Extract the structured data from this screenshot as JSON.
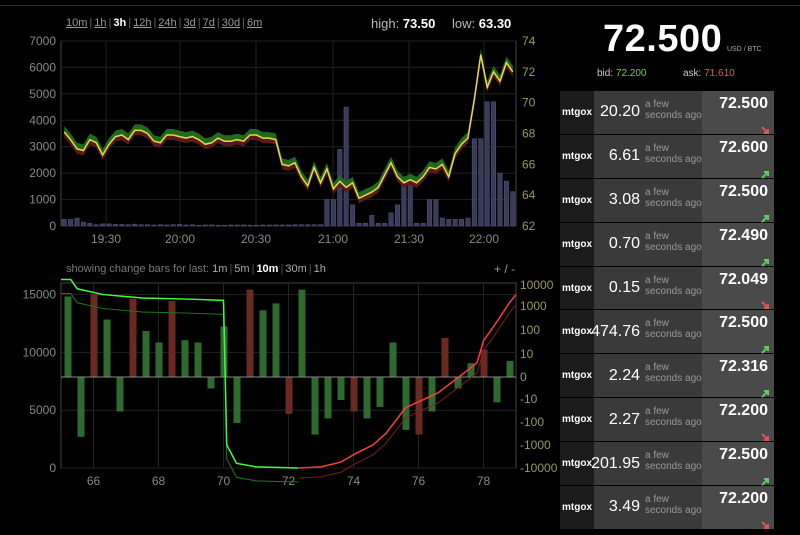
{
  "timeframes": {
    "options": [
      "10m",
      "1h",
      "3h",
      "12h",
      "24h",
      "3d",
      "7d",
      "30d",
      "6m"
    ],
    "active": "3h"
  },
  "stats": {
    "high_label": "high:",
    "high_value": "73.50",
    "low_label": "low:",
    "low_value": "63.30"
  },
  "ticker": {
    "price": "72.500",
    "unit": "USD / BTC",
    "bid_label": "bid:",
    "bid_value": "72.200",
    "ask_label": "ask:",
    "ask_value": "71.610"
  },
  "change_bars": {
    "label": "showing change bars for last:",
    "options": [
      "1m",
      "5m",
      "10m",
      "30m",
      "1h"
    ],
    "active": "10m",
    "zoom_label": "+ / -"
  },
  "trades": [
    {
      "exchange": "mtgox",
      "amount": "20.20",
      "when": "a few seconds ago",
      "price": "72.500",
      "direction": "down"
    },
    {
      "exchange": "mtgox",
      "amount": "6.61",
      "when": "a few seconds ago",
      "price": "72.600",
      "direction": "up"
    },
    {
      "exchange": "mtgox",
      "amount": "3.08",
      "when": "a few seconds ago",
      "price": "72.500",
      "direction": "up"
    },
    {
      "exchange": "mtgox",
      "amount": "0.70",
      "when": "a few seconds ago",
      "price": "72.490",
      "direction": "up"
    },
    {
      "exchange": "mtgox",
      "amount": "0.15",
      "when": "a few seconds ago",
      "price": "72.049",
      "direction": "down"
    },
    {
      "exchange": "mtgox",
      "amount": "474.76",
      "when": "a few seconds ago",
      "price": "72.500",
      "direction": "up"
    },
    {
      "exchange": "mtgox",
      "amount": "2.24",
      "when": "a few seconds ago",
      "price": "72.316",
      "direction": "up"
    },
    {
      "exchange": "mtgox",
      "amount": "2.27",
      "when": "a few seconds ago",
      "price": "72.200",
      "direction": "down"
    },
    {
      "exchange": "mtgox",
      "amount": "201.95",
      "when": "a few seconds ago",
      "price": "72.500",
      "direction": "up"
    },
    {
      "exchange": "mtgox",
      "amount": "3.49",
      "when": "a few seconds ago",
      "price": "72.200",
      "direction": "down"
    }
  ],
  "colors": {
    "up": "#5fce5f",
    "down": "#e05555",
    "price_line": "#e8d84a",
    "volume": "#3a3a5a",
    "depth_bid": "#3cff3c",
    "depth_ask": "#ff3c3c"
  },
  "chart_data": [
    {
      "type": "line",
      "x_ticks": [
        "19:30",
        "20:00",
        "20:30",
        "21:00",
        "21:30",
        "22:00"
      ],
      "y_left_ticks": [
        "7000",
        "6000",
        "5000",
        "4000",
        "3000",
        "2000",
        "1000",
        "0"
      ],
      "y_right_ticks": [
        "74",
        "72",
        "70",
        "68",
        "66",
        "64",
        "62"
      ],
      "ylim_left": [
        0,
        7000
      ],
      "ylim_right": [
        62,
        74
      ],
      "series": [
        {
          "values": [
            68.1,
            67.6,
            67.0,
            66.9,
            67.6,
            67.4,
            66.6,
            67.3,
            67.8,
            67.9,
            67.6,
            68.2,
            68.2,
            68.0,
            67.5,
            67.4,
            67.9,
            67.9,
            67.8,
            67.7,
            67.8,
            67.6,
            67.3,
            67.4,
            67.7,
            67.5,
            67.5,
            67.6,
            67.5,
            67.9,
            67.9,
            67.7,
            67.7,
            67.6,
            66.0,
            65.9,
            66.1,
            65.2,
            64.6,
            65.8,
            64.8,
            65.7,
            64.4,
            64.9,
            64.5,
            64.8,
            63.8,
            64.0,
            64.2,
            64.5,
            65.3,
            66.1,
            65.2,
            64.8,
            65.0,
            64.8,
            65.2,
            65.8,
            65.7,
            66.0,
            65.2,
            66.7,
            67.3,
            67.7,
            70.2,
            73.1,
            71.0,
            72.0,
            71.4,
            72.6,
            72.0
          ]
        },
        {
          "values": [
            250,
            250,
            300,
            150,
            100,
            50,
            80,
            80,
            60,
            60,
            50,
            70,
            50,
            50,
            40,
            50,
            40,
            50,
            60,
            40,
            50,
            30,
            40,
            40,
            30,
            30,
            40,
            40,
            40,
            30,
            30,
            40,
            40,
            40,
            40,
            40,
            50,
            50,
            50,
            50,
            50,
            1000,
            1000,
            2900,
            4500,
            800,
            100,
            100,
            400,
            100,
            100,
            500,
            800,
            1600,
            1600,
            100,
            100,
            1000,
            1000,
            300,
            250,
            250,
            250,
            300,
            3300,
            3300,
            4700,
            4700,
            2000,
            1700,
            1300
          ]
        }
      ]
    },
    {
      "type": "bar",
      "x_ticks": [
        "66",
        "68",
        "70",
        "72",
        "74",
        "76",
        "78"
      ],
      "y_left_ticks": [
        "15000",
        "10000",
        "5000",
        "0"
      ],
      "y_right_ticks": [
        "10000",
        "1000",
        "100",
        "10",
        "0",
        "-10",
        "-100",
        "-1000",
        "-10000"
      ],
      "xlim": [
        65,
        79
      ],
      "ylim_left": [
        0,
        16000
      ],
      "series": [
        {
          "values": [
            [
              65.2,
              3.5
            ],
            [
              65.6,
              -2.6
            ],
            [
              66.0,
              3.6
            ],
            [
              66.4,
              2.5
            ],
            [
              66.8,
              -1.5
            ],
            [
              67.2,
              3.4
            ],
            [
              67.6,
              2.0
            ],
            [
              68.0,
              1.5
            ],
            [
              68.4,
              3.3
            ],
            [
              68.8,
              1.6
            ],
            [
              69.2,
              1.5
            ],
            [
              69.6,
              -0.5
            ],
            [
              70.0,
              2.2
            ],
            [
              70.4,
              -2.0
            ],
            [
              70.8,
              3.8
            ],
            [
              71.2,
              2.9
            ],
            [
              71.6,
              3.2
            ],
            [
              72.0,
              -1.6
            ],
            [
              72.4,
              3.8
            ],
            [
              72.8,
              -2.5
            ],
            [
              73.2,
              -1.8
            ],
            [
              73.6,
              -1.0
            ],
            [
              74.0,
              -1.5
            ],
            [
              74.4,
              -1.8
            ],
            [
              74.8,
              -1.3
            ],
            [
              75.2,
              1.5
            ],
            [
              75.6,
              -2.3
            ],
            [
              76.0,
              -2.5
            ],
            [
              76.4,
              -1.5
            ],
            [
              76.8,
              1.7
            ],
            [
              77.2,
              -0.5
            ],
            [
              77.6,
              0.6
            ],
            [
              78.0,
              1.2
            ],
            [
              78.4,
              -1.1
            ],
            [
              78.8,
              0.7
            ]
          ]
        },
        {
          "values": [
            [
              65,
              16300
            ],
            [
              65.3,
              16300
            ],
            [
              65.5,
              15500
            ],
            [
              66.3,
              15000
            ],
            [
              67.5,
              14700
            ],
            [
              69.0,
              14600
            ],
            [
              70.0,
              14500
            ],
            [
              70.1,
              2000
            ],
            [
              70.4,
              400
            ],
            [
              71.0,
              100
            ],
            [
              72.3,
              0
            ],
            [
              73.0,
              100
            ],
            [
              73.6,
              500
            ],
            [
              74.1,
              1300
            ],
            [
              74.6,
              2000
            ],
            [
              75.0,
              3000
            ],
            [
              75.6,
              5200
            ],
            [
              76.6,
              6500
            ],
            [
              77.3,
              8000
            ],
            [
              77.8,
              9100
            ],
            [
              78.0,
              11000
            ],
            [
              78.4,
              12600
            ],
            [
              78.8,
              14300
            ],
            [
              79,
              15000
            ]
          ]
        }
      ]
    }
  ]
}
